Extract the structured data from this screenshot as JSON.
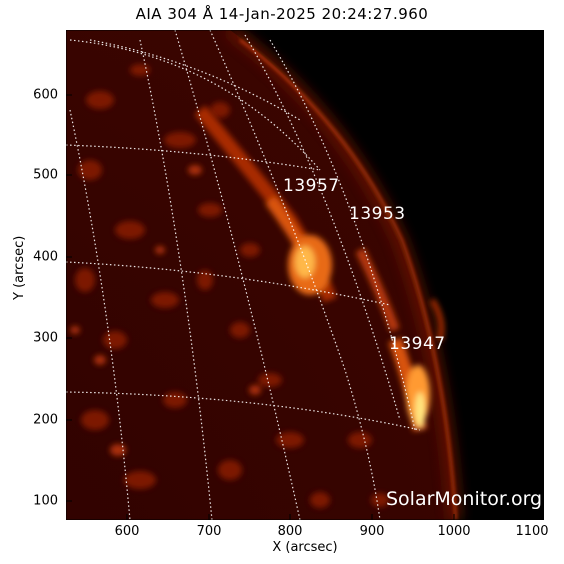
{
  "image": {
    "title": "AIA 304 Å 14-Jan-2025 20:24:27.960",
    "xlabel": "X (arcsec)",
    "ylabel": "Y (arcsec)",
    "x_ticks": [
      "600",
      "700",
      "800",
      "900",
      "1000",
      "1100"
    ],
    "y_ticks": [
      "600",
      "500",
      "400",
      "300",
      "200",
      "100"
    ],
    "active_regions": [
      "13957",
      "13953",
      "13947"
    ],
    "watermark": "SolarMonitor.org",
    "colors": {
      "background": "#000000",
      "disk": "#3a0000",
      "emission": "#e84a10",
      "highlight": "#ffe680",
      "grid": "#ffffff"
    }
  }
}
